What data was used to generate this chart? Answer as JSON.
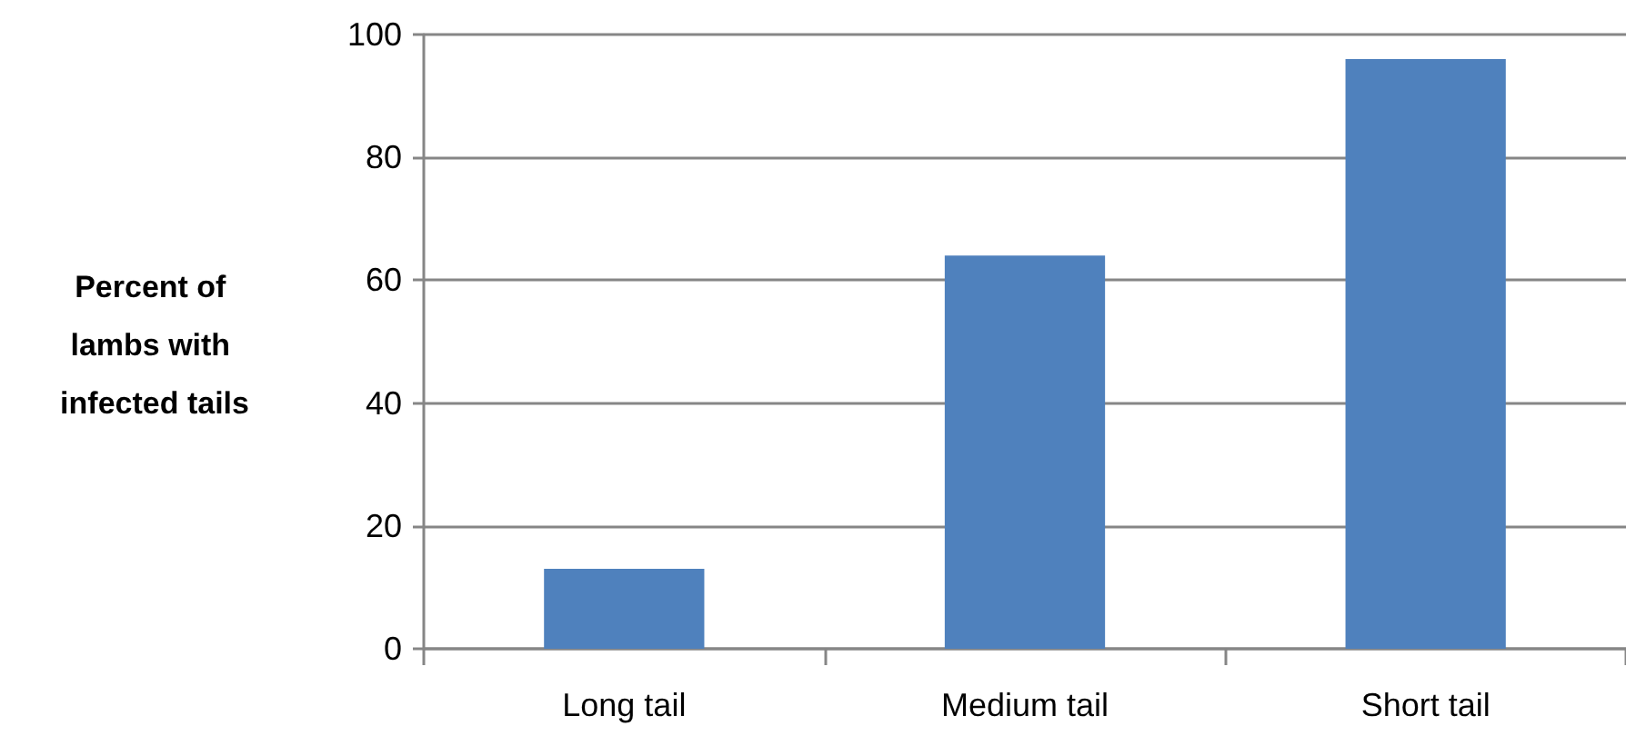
{
  "chart_data": {
    "type": "bar",
    "ylabel": "Percent of lambs with infected tails",
    "categories": [
      "Long tail",
      "Medium tail",
      "Short tail"
    ],
    "values": [
      13,
      64,
      96
    ],
    "color": "#4f81bd",
    "ylim": [
      0,
      100
    ],
    "yticks": [
      0,
      20,
      40,
      60,
      80,
      100
    ],
    "grid": "y"
  }
}
